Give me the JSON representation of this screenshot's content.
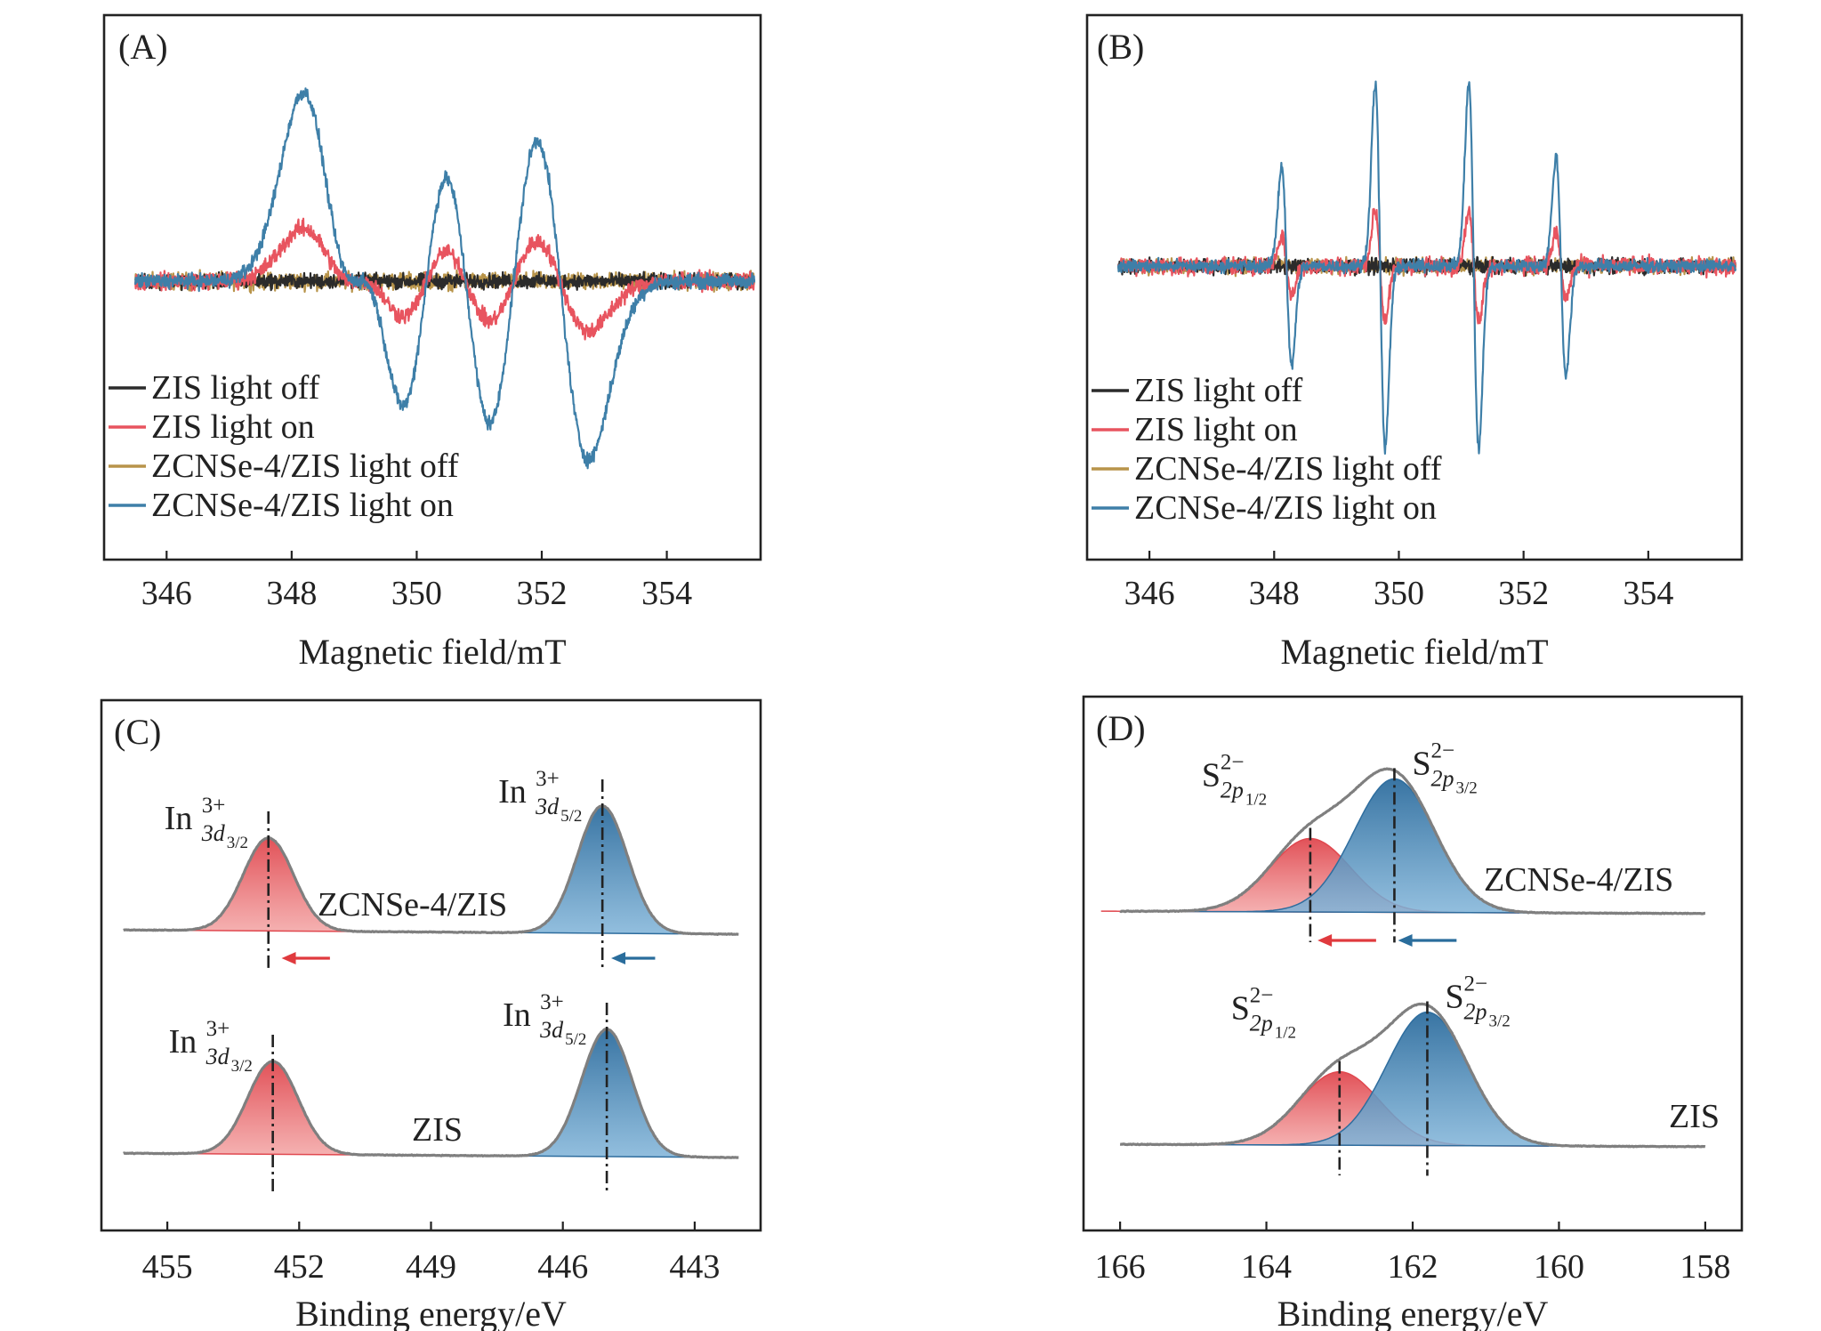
{
  "colors": {
    "zis_off": "#2b2b2b",
    "zis_on": "#e8545f",
    "zcn_off": "#b8944a",
    "zcn_on": "#3e7fa8",
    "red_peak": "#e0484f",
    "blue_peak": "#2e6d9e",
    "envelope": "#7f7f7f",
    "arrow_red": "#e03a3e",
    "arrow_blue": "#2a6d9c"
  },
  "chart_data": [
    {
      "id": "A",
      "panel_label": "(A)",
      "type": "line",
      "xlabel": "Magnetic field/mT",
      "ylabel": "",
      "xlim": [
        345,
        355.5
      ],
      "xticks": [
        346,
        348,
        350,
        352,
        354
      ],
      "x_range_data": [
        345.5,
        355.4
      ],
      "legend_location": "lower-left",
      "series": [
        {
          "key": "zis_off",
          "name": "ZIS light off",
          "line_amplitude_rel": 0.0,
          "noise_rel": 0.06
        },
        {
          "key": "zis_on",
          "name": "ZIS light on",
          "line_amplitude_rel": 0.28,
          "noise_rel": 0.07
        },
        {
          "key": "zcn_off",
          "name": "ZCNSe-4/ZIS light off",
          "line_amplitude_rel": 0.0,
          "noise_rel": 0.07
        },
        {
          "key": "zcn_on",
          "name": "ZCNSe-4/ZIS light on",
          "line_amplitude_rel": 1.0,
          "noise_rel": 0.06
        }
      ],
      "resonance_lines_mT": [
        348.6,
        349.5,
        350.8,
        352.3
      ],
      "linewidth_mT": 0.45
    },
    {
      "id": "B",
      "panel_label": "(B)",
      "type": "line",
      "xlabel": "Magnetic field/mT",
      "ylabel": "",
      "xlim": [
        345,
        355.5
      ],
      "xticks": [
        346,
        348,
        350,
        352,
        354
      ],
      "x_range_data": [
        345.5,
        355.4
      ],
      "legend_location": "lower-left",
      "series": [
        {
          "key": "zis_off",
          "name": "ZIS light off",
          "line_amplitude_rel": 0.0,
          "noise_rel": 0.06
        },
        {
          "key": "zis_on",
          "name": "ZIS light on",
          "line_amplitude_rel": 0.3,
          "noise_rel": 0.07
        },
        {
          "key": "zcn_off",
          "name": "ZCNSe-4/ZIS light off",
          "line_amplitude_rel": 0.0,
          "noise_rel": 0.06
        },
        {
          "key": "zcn_on",
          "name": "ZCNSe-4/ZIS light on",
          "line_amplitude_rel": 1.0,
          "noise_rel": 0.05
        }
      ],
      "resonance_lines_mT": [
        348.2,
        349.7,
        351.2,
        352.6
      ],
      "relative_line_heights": [
        0.55,
        1.0,
        1.0,
        0.6
      ],
      "linewidth_mT": 0.08
    },
    {
      "id": "C",
      "panel_label": "(C)",
      "type": "area",
      "xlabel": "Binding energy/eV",
      "ylabel": "",
      "xlim": [
        456.5,
        441.5
      ],
      "xticks": [
        455,
        452,
        449,
        446,
        443
      ],
      "x_range_data": [
        456,
        442
      ],
      "traces": [
        {
          "sample": "ZCNSe-4/ZIS",
          "peaks": [
            {
              "label_main": "In",
              "label_sup": "3+",
              "label_sub": "3d",
              "label_subsub": "3/2",
              "center_eV": 452.7,
              "fwhm_eV": 1.35,
              "height_rel": 0.73,
              "color": "red"
            },
            {
              "label_main": "In",
              "label_sup": "3+",
              "label_sub": "3d",
              "label_subsub": "5/2",
              "center_eV": 445.1,
              "fwhm_eV": 1.35,
              "height_rel": 1.0,
              "color": "blue"
            }
          ],
          "shift_arrows": [
            {
              "color": "red",
              "from_eV": 451.3,
              "to_eV": 452.4
            },
            {
              "color": "blue",
              "from_eV": 443.9,
              "to_eV": 444.9
            }
          ]
        },
        {
          "sample": "ZIS",
          "peaks": [
            {
              "label_main": "In",
              "label_sup": "3+",
              "label_sub": "3d",
              "label_subsub": "3/2",
              "center_eV": 452.6,
              "fwhm_eV": 1.35,
              "height_rel": 0.73,
              "color": "red"
            },
            {
              "label_main": "In",
              "label_sup": "3+",
              "label_sub": "3d",
              "label_subsub": "5/2",
              "center_eV": 445.0,
              "fwhm_eV": 1.35,
              "height_rel": 1.0,
              "color": "blue"
            }
          ],
          "shift_arrows": []
        }
      ]
    },
    {
      "id": "D",
      "panel_label": "(D)",
      "type": "area",
      "xlabel": "Binding energy/eV",
      "ylabel": "",
      "xlim": [
        166.5,
        157.5
      ],
      "xticks": [
        166,
        164,
        162,
        160,
        158
      ],
      "x_range_data": [
        166,
        158
      ],
      "traces": [
        {
          "sample": "ZCNSe-4/ZIS",
          "peaks": [
            {
              "label_main": "S",
              "label_sup": "2−",
              "label_sub": "2p",
              "label_subsub": "1/2",
              "center_eV": 163.4,
              "fwhm_eV": 1.3,
              "height_rel": 0.55,
              "color": "red"
            },
            {
              "label_main": "S",
              "label_sup": "2−",
              "label_sub": "2p",
              "label_subsub": "3/2",
              "center_eV": 162.25,
              "fwhm_eV": 1.3,
              "height_rel": 1.0,
              "color": "blue"
            }
          ],
          "shift_arrows": [
            {
              "color": "red",
              "from_eV": 162.5,
              "to_eV": 163.3
            },
            {
              "color": "blue",
              "from_eV": 161.4,
              "to_eV": 162.2
            }
          ]
        },
        {
          "sample": "ZIS",
          "peaks": [
            {
              "label_main": "S",
              "label_sup": "2−",
              "label_sub": "2p",
              "label_subsub": "1/2",
              "center_eV": 163.0,
              "fwhm_eV": 1.3,
              "height_rel": 0.55,
              "color": "red"
            },
            {
              "label_main": "S",
              "label_sup": "2−",
              "label_sub": "2p",
              "label_subsub": "3/2",
              "center_eV": 161.8,
              "fwhm_eV": 1.3,
              "height_rel": 1.0,
              "color": "blue"
            }
          ],
          "shift_arrows": []
        }
      ]
    }
  ]
}
